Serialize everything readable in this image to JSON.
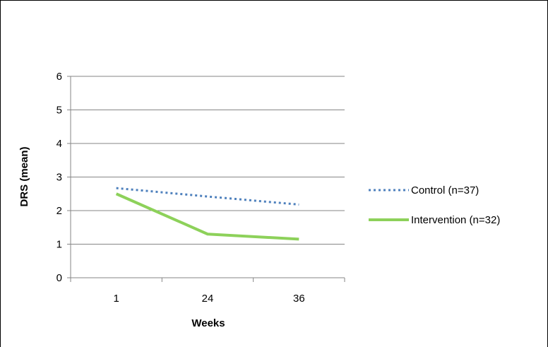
{
  "chart_data": {
    "type": "line",
    "title": "",
    "xlabel": "Weeks",
    "ylabel": "DRS (mean)",
    "categories": [
      "1",
      "24",
      "36"
    ],
    "ylim": [
      0,
      6
    ],
    "yticks": [
      0,
      1,
      2,
      3,
      4,
      5,
      6
    ],
    "grid": true,
    "legend_position": "right",
    "series": [
      {
        "name": "Control (n=37)",
        "values": [
          2.67,
          2.42,
          2.18
        ],
        "color": "#4f81bd",
        "style": "dotted"
      },
      {
        "name": "Intervention (n=32)",
        "values": [
          2.5,
          1.3,
          1.15
        ],
        "color": "#8dd15a",
        "style": "solid"
      }
    ]
  }
}
